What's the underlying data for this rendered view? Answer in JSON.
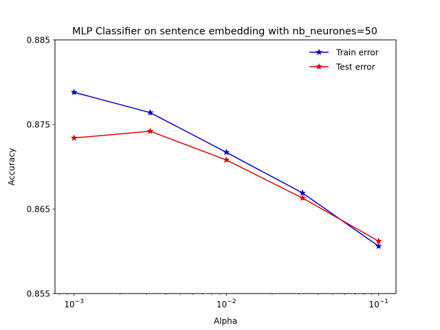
{
  "chart_data": {
    "type": "line",
    "title": "MLP Classifier on sentence embedding with nb_neurones=50",
    "xlabel": "Alpha",
    "ylabel": "Accuracy",
    "xscale": "log",
    "x": [
      0.001,
      0.003162,
      0.01,
      0.03162,
      0.1
    ],
    "xlim": [
      0.00075,
      0.13
    ],
    "ylim": [
      0.855,
      0.885
    ],
    "xticks": [
      {
        "value": 0.001,
        "base": "10",
        "exp": "−3"
      },
      {
        "value": 0.01,
        "base": "10",
        "exp": "−2"
      },
      {
        "value": 0.1,
        "base": "10",
        "exp": "−1"
      }
    ],
    "yticks": [
      {
        "value": 0.855,
        "label": "0.855"
      },
      {
        "value": 0.865,
        "label": "0.865"
      },
      {
        "value": 0.875,
        "label": "0.875"
      },
      {
        "value": 0.885,
        "label": "0.885"
      }
    ],
    "series": [
      {
        "name": "Train error",
        "color": "#0000cc",
        "values": [
          0.8788,
          0.8764,
          0.8717,
          0.8669,
          0.8606
        ]
      },
      {
        "name": "Test error",
        "color": "#dd0000",
        "values": [
          0.8734,
          0.8742,
          0.8708,
          0.8663,
          0.8612
        ]
      }
    ],
    "legend_position": "top-right",
    "grid": false,
    "marker": "star"
  }
}
